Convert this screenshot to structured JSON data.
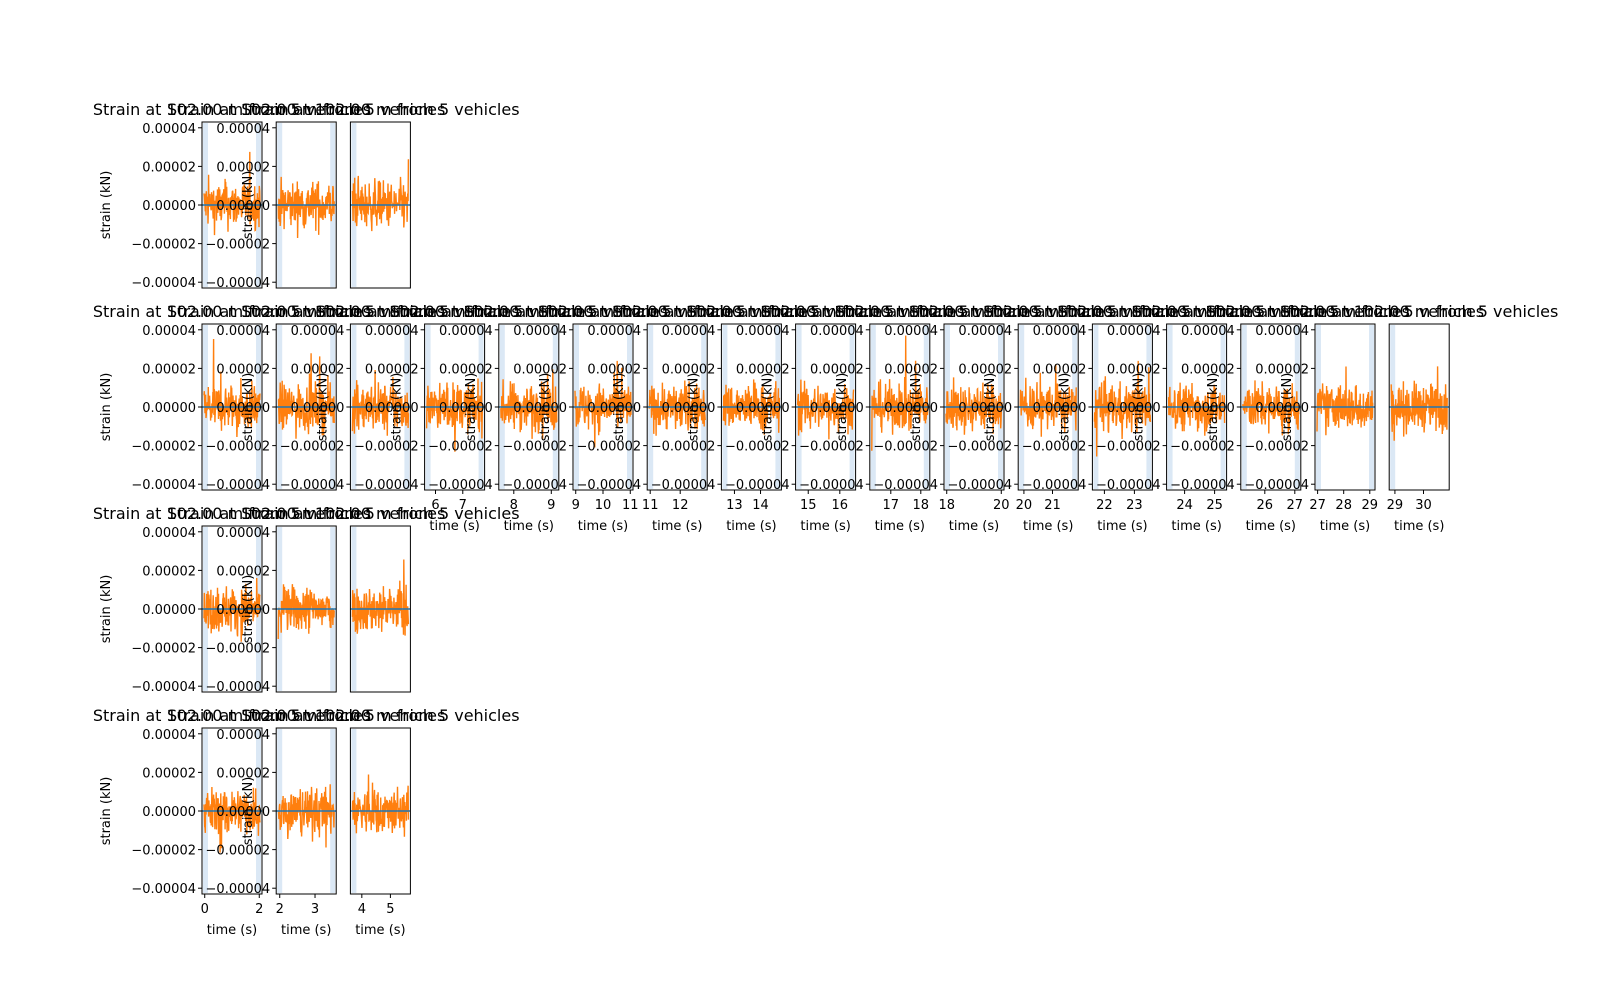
{
  "chart_data": {
    "type": "line",
    "colors": {
      "signal": "#ff7f0e",
      "baseline": "#1f77b4",
      "band": "#dbe8f5"
    },
    "title_text": "Strain at 102.00 m from 5 vehicles",
    "xlabel": "time (s)",
    "ylabel": "strain (kN)",
    "ylim": [
      -4.3e-05,
      4.3e-05
    ],
    "y_ticks": [
      "0.00004",
      "0.00002",
      "0.00000",
      "−0.00002",
      "−0.00004"
    ],
    "y_tick_values": [
      4e-05,
      2e-05,
      0,
      -2e-05,
      -4e-05
    ],
    "rows": [
      {
        "panels": [
          {
            "xlim": [
              -0.1,
              2.1
            ],
            "x_ticks": []
          },
          {
            "xlim": [
              1.9,
              3.6
            ],
            "x_ticks": []
          },
          {
            "xlim": [
              3.6,
              5.7
            ],
            "x_ticks": []
          }
        ]
      },
      {
        "panels": [
          {
            "xlim": [
              -0.1,
              2.1
            ],
            "x_ticks": []
          },
          {
            "xlim": [
              1.9,
              3.6
            ],
            "x_ticks": []
          },
          {
            "xlim": [
              3.6,
              5.7
            ],
            "x_ticks": []
          },
          {
            "xlim": [
              5.6,
              7.8
            ],
            "x_ticks": [
              6,
              7
            ]
          },
          {
            "xlim": [
              7.6,
              9.2
            ],
            "x_ticks": [
              8,
              9
            ]
          },
          {
            "xlim": [
              8.9,
              11.1
            ],
            "x_ticks": [
              9,
              10,
              11
            ]
          },
          {
            "xlim": [
              10.9,
              12.9
            ],
            "x_ticks": [
              11,
              12
            ]
          },
          {
            "xlim": [
              12.5,
              14.8
            ],
            "x_ticks": [
              13,
              14
            ]
          },
          {
            "xlim": [
              14.6,
              16.5
            ],
            "x_ticks": [
              15,
              16
            ]
          },
          {
            "xlim": [
              16.3,
              18.3
            ],
            "x_ticks": [
              17,
              18
            ]
          },
          {
            "xlim": [
              17.9,
              20.1
            ],
            "x_ticks": [
              18,
              20
            ]
          },
          {
            "xlim": [
              19.8,
              21.9
            ],
            "x_ticks": [
              20,
              21
            ]
          },
          {
            "xlim": [
              21.6,
              23.6
            ],
            "x_ticks": [
              22,
              23
            ]
          },
          {
            "xlim": [
              23.4,
              25.4
            ],
            "x_ticks": [
              24,
              25
            ]
          },
          {
            "xlim": [
              25.2,
              27.2
            ],
            "x_ticks": [
              26,
              27
            ]
          },
          {
            "xlim": [
              26.9,
              29.2
            ],
            "x_ticks": [
              27,
              28,
              29
            ]
          },
          {
            "xlim": [
              28.8,
              30.9
            ],
            "x_ticks": [
              29,
              30
            ]
          }
        ]
      },
      {
        "panels": [
          {
            "xlim": [
              -0.1,
              2.1
            ],
            "x_ticks": []
          },
          {
            "xlim": [
              1.9,
              3.6
            ],
            "x_ticks": []
          },
          {
            "xlim": [
              3.6,
              5.7
            ],
            "x_ticks": []
          }
        ]
      },
      {
        "panels": [
          {
            "xlim": [
              -0.1,
              2.1
            ],
            "x_ticks": [
              0,
              2
            ]
          },
          {
            "xlim": [
              1.9,
              3.6
            ],
            "x_ticks": [
              2,
              3
            ]
          },
          {
            "xlim": [
              3.6,
              5.7
            ],
            "x_ticks": [
              4,
              5
            ]
          }
        ]
      }
    ]
  }
}
